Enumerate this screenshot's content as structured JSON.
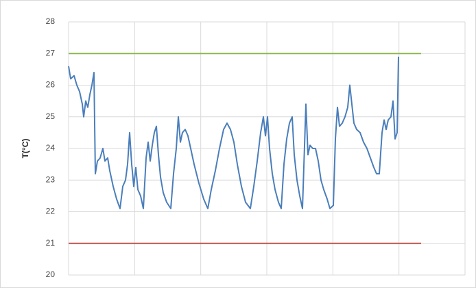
{
  "chart_data": {
    "type": "line",
    "ylabel": "T(°C)",
    "ylim": [
      20,
      28
    ],
    "yticks": [
      20,
      21,
      22,
      23,
      24,
      25,
      26,
      27,
      28
    ],
    "xlim": [
      0,
      578
    ],
    "grid": true,
    "series": [
      {
        "color": "#4a7ebb",
        "x": [
          0,
          3,
          8,
          12,
          16,
          20,
          22,
          25,
          28,
          31,
          34,
          37,
          39,
          42,
          46,
          50,
          53,
          57,
          60,
          65,
          70,
          75,
          79,
          83,
          86,
          89,
          92,
          95,
          98,
          101,
          105,
          109,
          113,
          116,
          119,
          122,
          125,
          128,
          131,
          134,
          138,
          143,
          149,
          153,
          157,
          160,
          163,
          166,
          170,
          174,
          178,
          183,
          190,
          197,
          203,
          208,
          214,
          220,
          226,
          231,
          236,
          241,
          246,
          252,
          258,
          265,
          270,
          275,
          280,
          284,
          287,
          290,
          293,
          297,
          301,
          306,
          310,
          314,
          318,
          322,
          326,
          329,
          333,
          337,
          341,
          346,
          349,
          352,
          356,
          360,
          364,
          368,
          372,
          377,
          381,
          386,
          389,
          392,
          395,
          399,
          403,
          407,
          410,
          413,
          416,
          420,
          425,
          430,
          435,
          440,
          445,
          449,
          453,
          457,
          460,
          463,
          466,
          470,
          473,
          476,
          479,
          481
        ],
        "values": [
          26.6,
          26.2,
          26.3,
          26.0,
          25.8,
          25.4,
          25.0,
          25.5,
          25.3,
          25.7,
          26.0,
          26.4,
          23.2,
          23.6,
          23.7,
          24.0,
          23.6,
          23.7,
          23.3,
          22.8,
          22.4,
          22.1,
          22.8,
          23.0,
          23.5,
          24.5,
          23.5,
          22.8,
          23.4,
          22.7,
          22.5,
          22.1,
          23.7,
          24.2,
          23.6,
          24.1,
          24.5,
          24.7,
          23.8,
          23.1,
          22.6,
          22.3,
          22.1,
          23.2,
          24.0,
          25.0,
          24.2,
          24.5,
          24.6,
          24.4,
          24.0,
          23.5,
          22.9,
          22.4,
          22.1,
          22.7,
          23.3,
          24.0,
          24.6,
          24.8,
          24.6,
          24.2,
          23.5,
          22.8,
          22.3,
          22.1,
          22.8,
          23.6,
          24.5,
          25.0,
          24.4,
          25.0,
          24.0,
          23.2,
          22.7,
          22.3,
          22.1,
          23.5,
          24.3,
          24.8,
          25.0,
          23.8,
          23.0,
          22.5,
          22.1,
          25.4,
          23.8,
          24.1,
          24.0,
          24.0,
          23.6,
          23.0,
          22.7,
          22.4,
          22.1,
          22.2,
          24.3,
          25.3,
          24.7,
          24.8,
          25.0,
          25.3,
          26.0,
          25.4,
          24.8,
          24.6,
          24.5,
          24.2,
          24.0,
          23.7,
          23.4,
          23.2,
          23.2,
          24.5,
          24.9,
          24.6,
          24.9,
          25.0,
          25.5,
          24.3,
          24.5,
          26.9
        ]
      },
      {
        "color": "#8ab84a",
        "x": [
          0,
          514
        ],
        "values": [
          27,
          27
        ]
      },
      {
        "color": "#c0504d",
        "x": [
          0,
          514
        ],
        "values": [
          21,
          21
        ]
      }
    ]
  }
}
